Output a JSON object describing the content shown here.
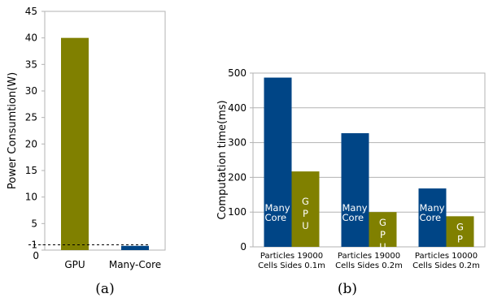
{
  "chart_data": [
    {
      "type": "bar",
      "categories": [
        "GPU",
        "Many-Core"
      ],
      "values": [
        40,
        0.8
      ],
      "colors": [
        "#808000",
        "#004586"
      ],
      "ylabel": "Power Consumtion(W)",
      "ylim": [
        0,
        45
      ],
      "yticks": [
        "0",
        "1",
        "5",
        "10",
        "15",
        "20",
        "25",
        "30",
        "35",
        "40",
        "45"
      ],
      "reference_line": {
        "value": 1,
        "style": "dashed"
      },
      "caption": "(a)"
    },
    {
      "type": "bar",
      "categories": [
        [
          "Particles 19000",
          "Cells Sides 0.1m"
        ],
        [
          "Particles 19000",
          "Cells Sides 0.2m"
        ],
        [
          "Particles 10000",
          "Cells Sides 0.2m"
        ]
      ],
      "series": [
        {
          "label": [
            "Many",
            "Core"
          ],
          "values": [
            487,
            327,
            168
          ],
          "color": "#004586"
        },
        {
          "label": [
            "G",
            "P",
            "U"
          ],
          "values": [
            217,
            100,
            88
          ],
          "color": "#808000"
        }
      ],
      "ylabel": "Computation time(ms)",
      "ylim": [
        0,
        500
      ],
      "yticks": [
        "0",
        "100",
        "200",
        "300",
        "400",
        "500"
      ],
      "grid": true,
      "caption": "(b)"
    }
  ]
}
